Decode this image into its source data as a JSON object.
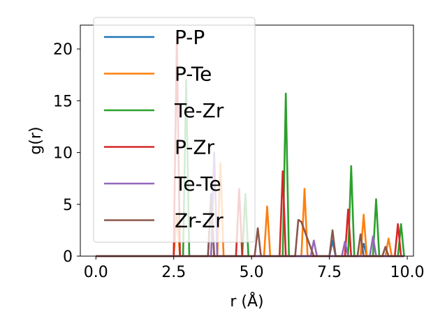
{
  "chart_data": {
    "type": "line",
    "xlabel": "r (Å)",
    "ylabel": "g(r)",
    "xlim": [
      -0.5,
      10.2
    ],
    "ylim": [
      0,
      22.3
    ],
    "xticks": [
      0.0,
      2.5,
      5.0,
      7.5,
      10.0
    ],
    "xtick_labels": [
      "0.0",
      "2.5",
      "5.0",
      "7.5",
      "10.0"
    ],
    "yticks": [
      0,
      5,
      10,
      15,
      20
    ],
    "ytick_labels": [
      "0",
      "5",
      "10",
      "15",
      "20"
    ],
    "grid": false,
    "legend_position": "upper-left",
    "series": [
      {
        "name": "P-P",
        "color": "#1f77b4",
        "x": [
          0,
          3.6,
          3.7,
          3.8,
          7.5,
          7.6,
          7.7,
          8.5,
          8.6,
          8.7,
          9.9
        ],
        "y": [
          0,
          0,
          6.0,
          0,
          0,
          1.5,
          0,
          0,
          1.2,
          0,
          0
        ]
      },
      {
        "name": "P-Te",
        "color": "#ff7f0e",
        "x": [
          0,
          2.5,
          2.6,
          2.7,
          3.9,
          4.0,
          4.1,
          5.4,
          5.5,
          5.6,
          6.6,
          6.7,
          6.8,
          8.5,
          8.6,
          8.7,
          9.3,
          9.4,
          9.5,
          9.9
        ],
        "y": [
          0,
          0,
          4.0,
          0,
          0,
          9.0,
          0,
          0,
          4.8,
          0,
          0,
          6.5,
          0,
          0,
          4.0,
          0,
          0,
          1.7,
          0,
          0
        ]
      },
      {
        "name": "Te-Zr",
        "color": "#2ca02c",
        "x": [
          0,
          2.8,
          2.9,
          3.0,
          4.7,
          4.8,
          4.9,
          6.0,
          6.1,
          6.2,
          8.1,
          8.2,
          8.3,
          8.9,
          9.0,
          9.1,
          9.7,
          9.8,
          9.9
        ],
        "y": [
          0,
          0,
          17.0,
          0,
          0,
          6.0,
          0,
          0,
          15.7,
          0,
          0,
          8.7,
          0,
          0,
          5.5,
          0,
          0,
          3.1,
          0
        ]
      },
      {
        "name": "P-Zr",
        "color": "#d62728",
        "x": [
          0,
          2.5,
          2.6,
          2.7,
          4.5,
          4.6,
          4.7,
          5.9,
          6.0,
          6.1,
          8.0,
          8.1,
          8.2,
          9.6,
          9.7,
          9.8,
          9.9
        ],
        "y": [
          0,
          0,
          21.2,
          0,
          0,
          6.5,
          0,
          0,
          8.2,
          0,
          0,
          4.5,
          0,
          0,
          3.1,
          0,
          0
        ]
      },
      {
        "name": "Te-Te",
        "color": "#9467bd",
        "x": [
          0,
          3.7,
          3.8,
          3.9,
          6.9,
          7.0,
          7.1,
          7.9,
          8.0,
          8.1,
          8.8,
          8.9,
          9.0,
          9.9
        ],
        "y": [
          0,
          0,
          10.0,
          0,
          0,
          1.5,
          0,
          0,
          1.4,
          0,
          0,
          1.9,
          0,
          0
        ]
      },
      {
        "name": "Zr-Zr",
        "color": "#8c564b",
        "x": [
          0,
          3.6,
          3.7,
          3.8,
          5.1,
          5.2,
          5.3,
          6.4,
          6.5,
          6.6,
          7.0,
          7.5,
          7.6,
          7.7,
          8.4,
          8.5,
          8.6,
          9.2,
          9.3,
          9.4,
          9.9
        ],
        "y": [
          0,
          0,
          5.6,
          0,
          0,
          2.7,
          0,
          0,
          3.5,
          3.3,
          0,
          0,
          2.5,
          0,
          0,
          2.1,
          0,
          0,
          0.9,
          0,
          0
        ]
      }
    ]
  }
}
